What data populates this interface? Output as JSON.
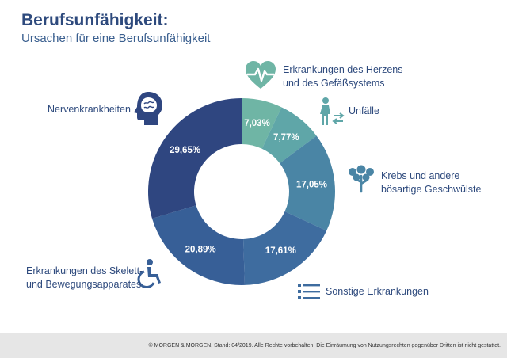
{
  "header": {
    "title": "Berufsunfähigkeit:",
    "subtitle": "Ursachen für eine Berufsunfähigkeit"
  },
  "chart_data": {
    "type": "pie",
    "donut": true,
    "categories": [
      "Erkrankungen des Herzens und des Gefäßsystems",
      "Unfälle",
      "Krebs und andere bösartige Geschwülste",
      "Sonstige Erkrankungen",
      "Erkrankungen des Skelett- und Bewegungsapparates",
      "Nervenkrankheiten"
    ],
    "values": [
      7.03,
      7.77,
      17.05,
      17.61,
      20.89,
      29.65
    ],
    "value_labels": [
      "7,03%",
      "7,77%",
      "17,05%",
      "17,61%",
      "20,89%",
      "29,65%"
    ],
    "colors": [
      "#6fb5a5",
      "#5fa6a8",
      "#4a85a5",
      "#3e6c9f",
      "#375f97",
      "#2f4680"
    ],
    "legend": "callouts around chart"
  },
  "labels": {
    "herz_line1": "Erkrankungen des Herzens",
    "herz_line2": "und des Gefäßsystems",
    "unfaelle": "Unfälle",
    "krebs_line1": "Krebs und andere",
    "krebs_line2": "bösartige Geschwülste",
    "sonstige": "Sonstige Erkrankungen",
    "skelett_line1": "Erkrankungen des Skelett-",
    "skelett_line2": "und Bewegungsapparates",
    "nerven": "Nervenkrankheiten"
  },
  "icons": {
    "herz": "heart-pulse-icon",
    "unfaelle": "walking-person-icon",
    "krebs": "tree-cells-icon",
    "sonstige": "list-icon",
    "skelett": "wheelchair-icon",
    "nerven": "head-brain-icon"
  },
  "footer": {
    "text": "© MORGEN & MORGEN, Stand: 04/2019. Alle Rechte vorbehalten. Die Einräumung von Nutzungsrechten gegenüber Dritten ist nicht gestattet."
  }
}
